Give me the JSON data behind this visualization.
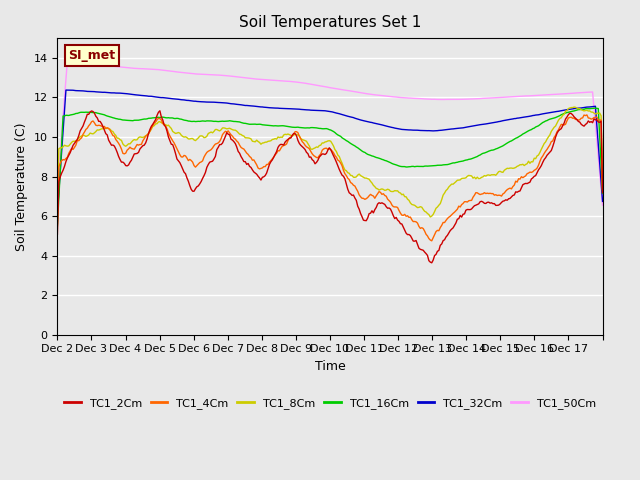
{
  "title": "Soil Temperatures Set 1",
  "xlabel": "Time",
  "ylabel": "Soil Temperature (C)",
  "ylim": [
    0,
    15
  ],
  "yticks": [
    0,
    2,
    4,
    6,
    8,
    10,
    12,
    14
  ],
  "annotation_text": "SI_met",
  "background_color": "#e8e8e8",
  "plot_bg_color": "#e8e8e8",
  "grid_color": "#ffffff",
  "series_colors": {
    "TC1_2Cm": "#cc0000",
    "TC1_4Cm": "#ff6600",
    "TC1_8Cm": "#cccc00",
    "TC1_16Cm": "#00cc00",
    "TC1_32Cm": "#0000cc",
    "TC1_50Cm": "#ff99ff"
  },
  "xtick_labels": [
    "Dec 2",
    "Dec 3",
    "Dec 4",
    "Dec 5",
    "Dec 6",
    "Dec 7",
    "Dec 8",
    "Dec 9",
    "Dec 10",
    "Dec 11",
    "Dec 12",
    "Dec 13",
    "Dec 14",
    "Dec 15",
    "Dec 16",
    "Dec 17"
  ],
  "n_days": 16,
  "pts_per_day": 24,
  "xp_2cm": [
    0,
    0.5,
    1,
    1.5,
    2,
    2.5,
    3,
    3.5,
    4,
    4.5,
    5,
    5.5,
    6,
    6.5,
    7,
    7.5,
    8,
    8.5,
    9,
    9.5,
    10,
    10.5,
    11,
    11.5,
    12,
    12.5,
    13,
    13.5,
    14,
    14.5,
    15,
    15.5,
    16
  ],
  "yp_2cm": [
    7.5,
    9.8,
    11.5,
    10.0,
    8.5,
    9.5,
    11.3,
    9.0,
    7.2,
    8.7,
    10.2,
    8.8,
    7.8,
    9.5,
    10.1,
    8.6,
    9.5,
    7.5,
    5.7,
    6.8,
    5.8,
    4.6,
    3.8,
    5.2,
    6.3,
    6.7,
    6.5,
    7.2,
    8.0,
    9.5,
    11.2,
    10.5,
    11.0
  ],
  "xp_4cm": [
    0,
    0.5,
    1,
    1.5,
    2,
    2.5,
    3,
    3.5,
    4,
    4.5,
    5,
    5.5,
    6,
    6.5,
    7,
    7.5,
    8,
    8.5,
    9,
    9.5,
    10,
    10.5,
    11,
    11.5,
    12,
    12.5,
    13,
    13.5,
    14,
    14.5,
    15,
    15.5,
    16
  ],
  "yp_4cm": [
    8.4,
    9.5,
    10.8,
    10.3,
    9.2,
    9.8,
    11.1,
    9.4,
    8.5,
    9.3,
    10.4,
    9.3,
    8.4,
    9.3,
    10.3,
    9.0,
    9.5,
    8.0,
    6.8,
    7.2,
    6.2,
    5.8,
    4.8,
    6.0,
    6.8,
    7.2,
    7.0,
    7.8,
    8.3,
    9.8,
    11.0,
    11.0,
    10.8
  ],
  "xp_8cm": [
    0,
    0.5,
    1,
    1.5,
    2,
    2.5,
    3,
    3.5,
    4,
    4.5,
    5,
    5.5,
    6,
    6.5,
    7,
    7.5,
    8,
    8.5,
    9,
    9.5,
    10,
    10.5,
    11,
    11.5,
    12,
    12.5,
    13,
    13.5,
    14,
    14.5,
    15,
    15.5,
    16
  ],
  "yp_8cm": [
    9.3,
    9.8,
    10.2,
    10.5,
    9.5,
    10.0,
    10.8,
    10.2,
    9.8,
    10.2,
    10.4,
    10.0,
    9.6,
    10.0,
    10.2,
    9.4,
    9.8,
    8.2,
    8.0,
    7.3,
    7.2,
    6.5,
    6.0,
    7.5,
    8.0,
    8.0,
    8.2,
    8.5,
    8.8,
    10.2,
    11.5,
    11.3,
    11.2
  ],
  "xp_16cm": [
    0,
    1,
    2,
    3,
    4,
    5,
    6,
    7,
    8,
    9,
    10,
    11,
    12,
    13,
    14,
    15,
    16
  ],
  "yp_16cm": [
    11.0,
    11.3,
    10.8,
    11.0,
    10.8,
    10.8,
    10.6,
    10.5,
    10.4,
    9.2,
    8.5,
    8.5,
    8.8,
    9.5,
    10.5,
    11.3,
    11.5
  ],
  "xp_32cm": [
    0,
    1,
    2,
    3,
    4,
    5,
    6,
    7,
    8,
    9,
    10,
    11,
    12,
    13,
    14,
    15,
    16
  ],
  "yp_32cm": [
    12.4,
    12.3,
    12.2,
    12.0,
    11.8,
    11.7,
    11.5,
    11.4,
    11.3,
    10.8,
    10.4,
    10.3,
    10.5,
    10.8,
    11.1,
    11.4,
    11.6
  ],
  "xp_50cm": [
    0,
    1,
    2,
    3,
    4,
    5,
    6,
    7,
    8,
    9,
    10,
    11,
    12,
    13,
    14,
    15,
    16
  ],
  "yp_50cm": [
    13.9,
    13.7,
    13.5,
    13.4,
    13.2,
    13.1,
    12.9,
    12.8,
    12.5,
    12.2,
    12.0,
    11.9,
    11.9,
    12.0,
    12.1,
    12.2,
    12.3
  ]
}
